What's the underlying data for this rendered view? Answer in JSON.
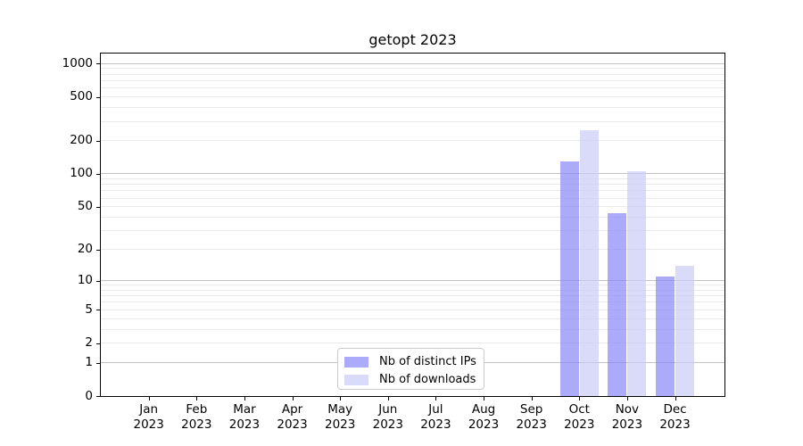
{
  "chart_data": {
    "type": "bar",
    "title": "getopt 2023",
    "categories": [
      "Jan",
      "Feb",
      "Mar",
      "Apr",
      "May",
      "Jun",
      "Jul",
      "Aug",
      "Sep",
      "Oct",
      "Nov",
      "Dec"
    ],
    "year_label": "2023",
    "series": [
      {
        "name": "Nb of distinct IPs",
        "color": "#8787f7",
        "alpha": 0.7,
        "values": [
          0,
          0,
          0,
          0,
          0,
          0,
          0,
          0,
          0,
          130,
          44,
          11
        ]
      },
      {
        "name": "Nb of downloads",
        "color": "#cbcbf6",
        "alpha": 0.7,
        "values": [
          0,
          0,
          0,
          0,
          0,
          0,
          0,
          0,
          0,
          250,
          105,
          14
        ]
      }
    ],
    "yscale": "log1p",
    "ylim": [
      0,
      1230
    ],
    "yticks": [
      0,
      1,
      2,
      5,
      10,
      20,
      50,
      100,
      200,
      500,
      1000
    ],
    "xlabel": "",
    "ylabel": "",
    "grid": {
      "axis": "y",
      "which": "both",
      "major_color": "#c2c2c2",
      "minor_color": "#eaeaea"
    },
    "legend": {
      "location": "lower center"
    },
    "spine_color": "#000000",
    "text_color": "#000000",
    "background": "#ffffff"
  }
}
